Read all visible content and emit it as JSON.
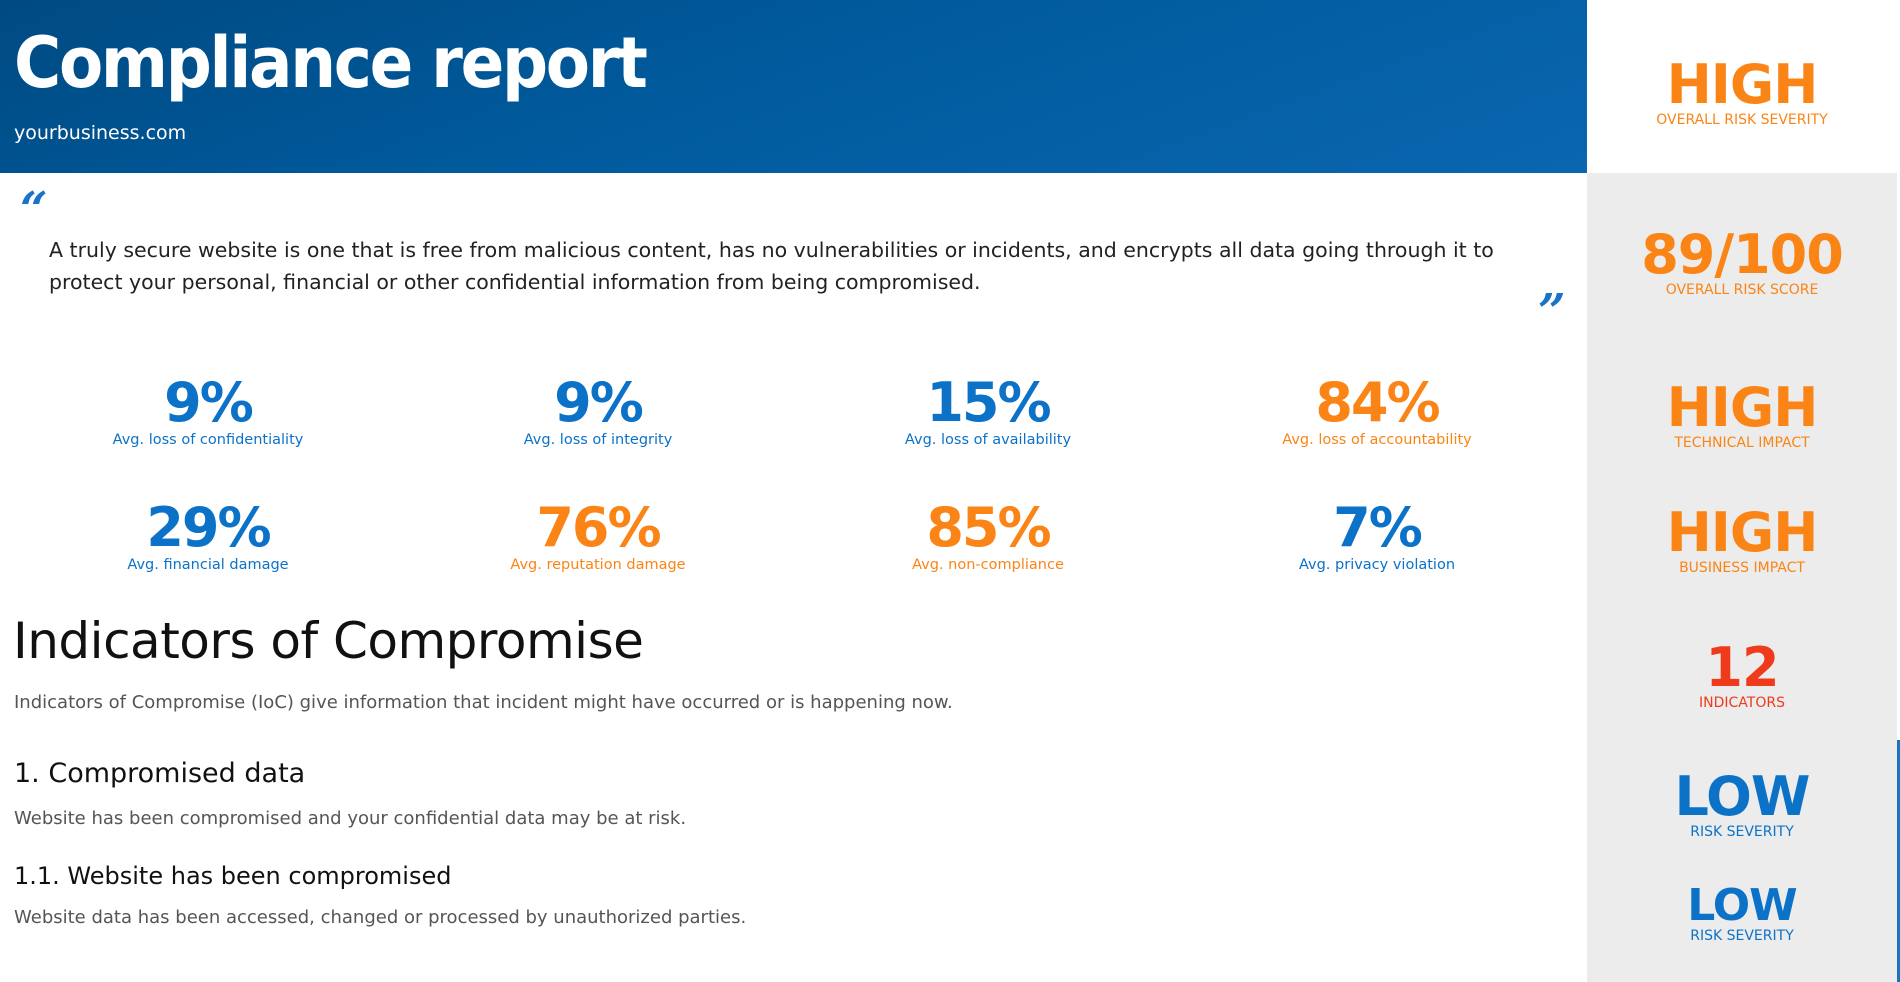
{
  "header": {
    "title": "Compliance report",
    "domain": "yourbusiness.com"
  },
  "quote": {
    "open_mark": "“",
    "close_mark": "”",
    "text": "A truly secure website is one that is free from malicious content, has no vulnerabilities or incidents, and encrypts all data going through it to protect your personal, financial or other confidential information from being compromised."
  },
  "stats": [
    {
      "value": "9%",
      "label": "Avg. loss of confidentiality",
      "color": "#0b72c8"
    },
    {
      "value": "9%",
      "label": "Avg. loss of integrity",
      "color": "#0b72c8"
    },
    {
      "value": "15%",
      "label": "Avg. loss of availability",
      "color": "#0b72c8"
    },
    {
      "value": "84%",
      "label": "Avg. loss of accountability",
      "color": "#fb8416"
    },
    {
      "value": "29%",
      "label": "Avg. financial damage",
      "color": "#0b72c8"
    },
    {
      "value": "76%",
      "label": "Avg. reputation damage",
      "color": "#fb8416"
    },
    {
      "value": "85%",
      "label": "Avg. non-compliance",
      "color": "#fb8416"
    },
    {
      "value": "7%",
      "label": "Avg. privacy violation",
      "color": "#0b72c8"
    }
  ],
  "ioc": {
    "title": "Indicators of Compromise",
    "description": "Indicators of Compromise (IoC) give information that incident might have occurred or is happening now.",
    "section": {
      "title": "1. Compromised data",
      "description": "Website has been compromised and your confidential data may be at risk."
    },
    "subsection": {
      "title": "1.1. Website has been compromised",
      "description": "Website data has been accessed, changed or processed by unauthorized parties."
    }
  },
  "sidebar": [
    {
      "value": "HIGH",
      "label": "OVERALL RISK SEVERITY",
      "color": "#fb8416"
    },
    {
      "value": "89/100",
      "label": "OVERALL RISK SCORE",
      "color": "#fb8416"
    },
    {
      "value": "HIGH",
      "label": "TECHNICAL IMPACT",
      "color": "#fb8416"
    },
    {
      "value": "HIGH",
      "label": "BUSINESS IMPACT",
      "color": "#fb8416"
    },
    {
      "value": "12",
      "label": "INDICATORS",
      "color": "#ef3a1c"
    },
    {
      "value": "LOW",
      "label": "RISK SEVERITY",
      "color": "#0b72c8"
    },
    {
      "value": "LOW",
      "label": "RISK SEVERITY",
      "color": "#0b72c8"
    }
  ],
  "colors": {
    "accent_blue": "#0b72c8",
    "accent_orange": "#fb8416",
    "accent_red": "#ef3a1c",
    "header_blue": "#005a9c"
  }
}
